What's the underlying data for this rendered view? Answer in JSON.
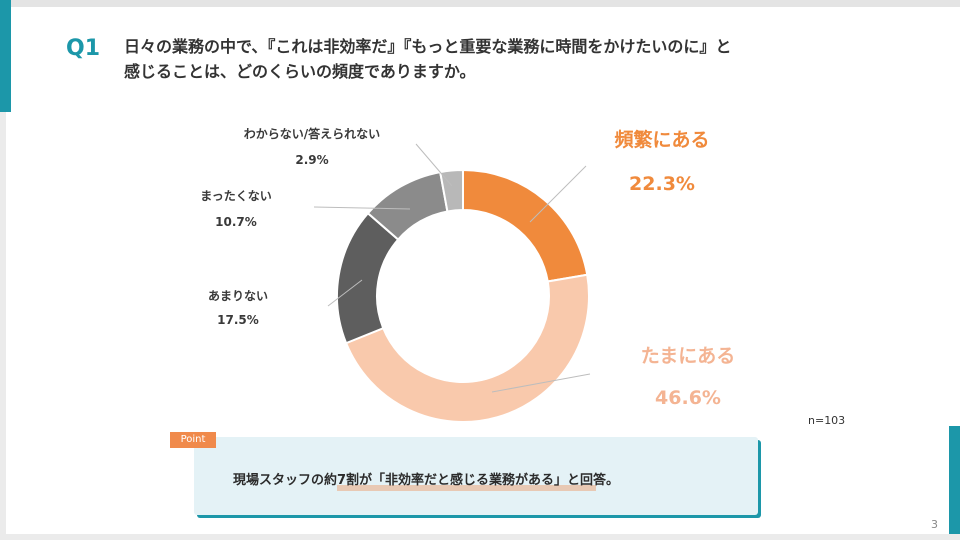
{
  "colors": {
    "accent": "#1c97a9",
    "point_tag": "#f08a4b",
    "slice_frequent": "#f08a3c",
    "slice_sometimes": "#f9c9ac",
    "slice_rarely": "#5e5e5e",
    "slice_never": "#8b8b8b",
    "slice_unknown": "#b8b8b8",
    "big_label": "#f08a3c",
    "big_label_light": "#f4b493"
  },
  "header": {
    "q_label": "Q1",
    "question_line1": "日々の業務の中で、『これは非効率だ』『もっと重要な業務に時間をかけたいのに』と",
    "question_line2": "感じることは、どのくらいの頻度でありますか。"
  },
  "chart_data": {
    "type": "pie",
    "categories": [
      "頻繁にある",
      "たまにある",
      "あまりない",
      "まったくない",
      "わからない/答えられない"
    ],
    "values": [
      22.3,
      46.6,
      17.5,
      10.7,
      2.9
    ],
    "value_labels": [
      "22.3%",
      "46.6%",
      "17.5%",
      "10.7%",
      "2.9%"
    ],
    "donut": true,
    "sample_size": "n=103"
  },
  "point": {
    "tag": "Point",
    "text": "現場スタッフの約7割が「非効率だと感じる業務がある」と回答。"
  },
  "page_number": "3"
}
